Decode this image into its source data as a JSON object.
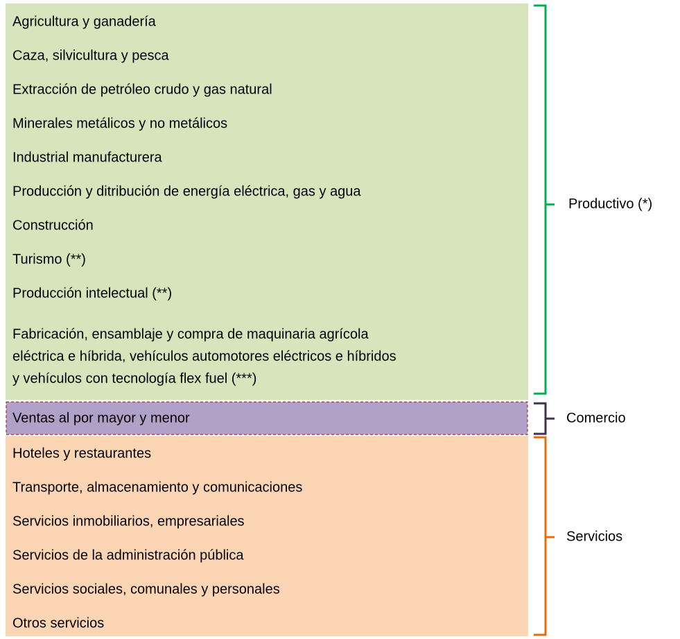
{
  "groups": [
    {
      "label": "Productivo (*)",
      "items": [
        [
          "Agricultura y ganadería"
        ],
        [
          "Caza, silvicultura y pesca"
        ],
        [
          "Extracción de petróleo crudo y gas natural"
        ],
        [
          "Minerales metálicos y no metálicos"
        ],
        [
          "Industrial manufacturera"
        ],
        [
          "Producción y ditribución de energía eléctrica, gas y agua"
        ],
        [
          "Construcción"
        ],
        [
          "Turismo (**)"
        ],
        [
          "Producción intelectual (**)"
        ],
        [
          "Fabricación, ensamblaje y compra de maquinaria agrícola",
          "eléctrica e híbrida, vehículos automotores eléctricos e híbridos",
          "y vehículos con tecnología flex fuel (***)"
        ]
      ]
    },
    {
      "label": "Comercio",
      "items": [
        [
          "Ventas al por mayor y menor"
        ]
      ]
    },
    {
      "label": "Servicios",
      "items": [
        [
          "Hoteles y restaurantes"
        ],
        [
          "Transporte, almacenamiento y comunicaciones"
        ],
        [
          "Servicios inmobiliarios, empresariales"
        ],
        [
          "Servicios de la administración pública"
        ],
        [
          "Servicios sociales, comunales y personales"
        ],
        [
          "Otros servicios"
        ]
      ]
    }
  ]
}
